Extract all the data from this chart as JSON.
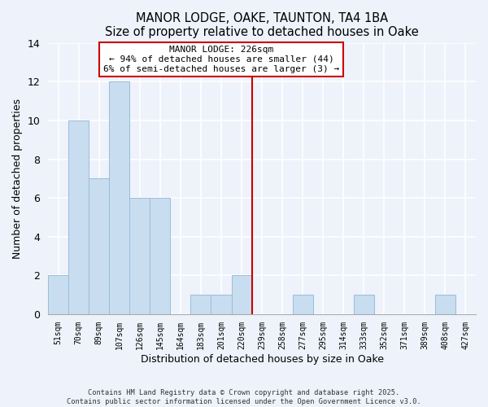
{
  "title": "MANOR LODGE, OAKE, TAUNTON, TA4 1BA",
  "subtitle": "Size of property relative to detached houses in Oake",
  "xlabel": "Distribution of detached houses by size in Oake",
  "ylabel": "Number of detached properties",
  "bar_labels": [
    "51sqm",
    "70sqm",
    "89sqm",
    "107sqm",
    "126sqm",
    "145sqm",
    "164sqm",
    "183sqm",
    "201sqm",
    "220sqm",
    "239sqm",
    "258sqm",
    "277sqm",
    "295sqm",
    "314sqm",
    "333sqm",
    "352sqm",
    "371sqm",
    "389sqm",
    "408sqm",
    "427sqm"
  ],
  "bar_values": [
    2,
    10,
    7,
    12,
    6,
    6,
    0,
    1,
    1,
    2,
    0,
    0,
    1,
    0,
    0,
    1,
    0,
    0,
    0,
    1,
    0
  ],
  "bar_color": "#c8ddf0",
  "bar_edge_color": "#9bbcd8",
  "vline_color": "#cc0000",
  "annotation_title": "MANOR LODGE: 226sqm",
  "annotation_line1": "← 94% of detached houses are smaller (44)",
  "annotation_line2": "6% of semi-detached houses are larger (3) →",
  "annotation_box_color": "white",
  "annotation_box_edge": "#cc0000",
  "ylim": [
    0,
    14
  ],
  "yticks": [
    0,
    2,
    4,
    6,
    8,
    10,
    12,
    14
  ],
  "background_color": "#eef2fb",
  "grid_color": "#ffffff",
  "footnote1": "Contains HM Land Registry data © Crown copyright and database right 2025.",
  "footnote2": "Contains public sector information licensed under the Open Government Licence v3.0."
}
